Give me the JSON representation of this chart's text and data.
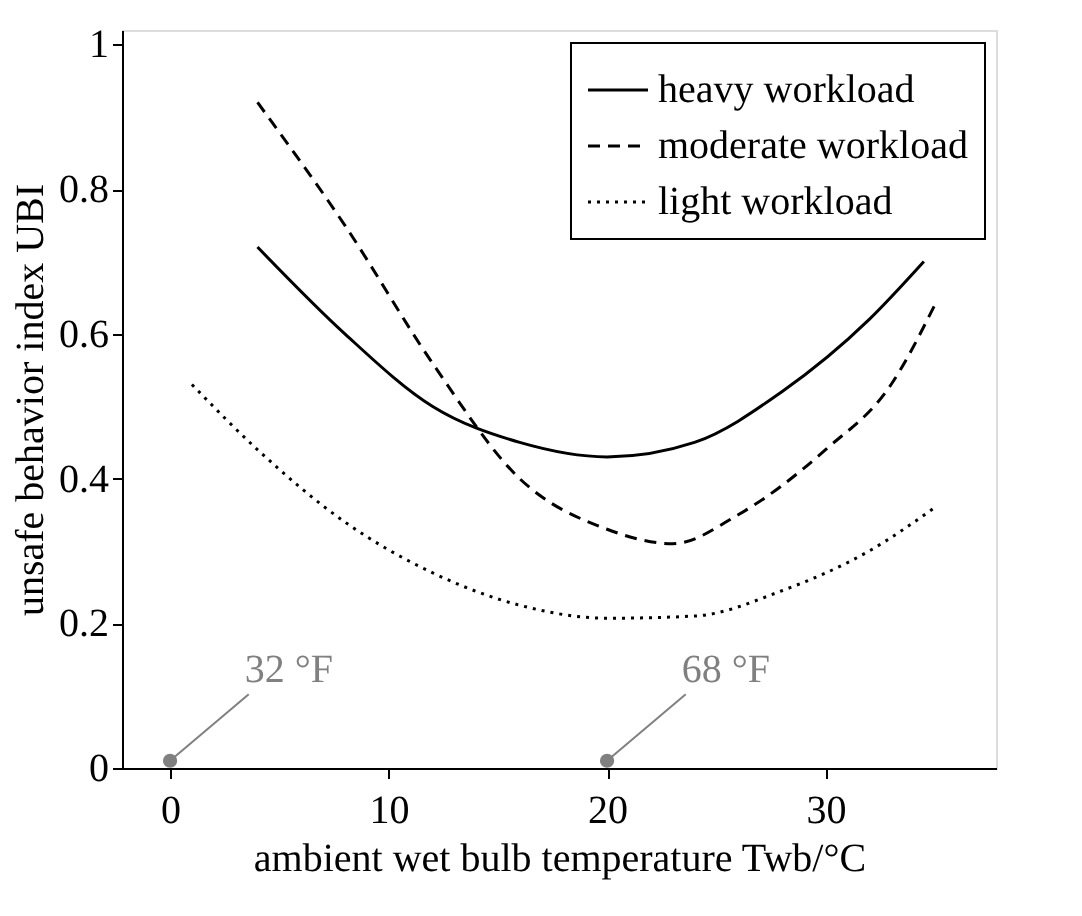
{
  "chart_data": {
    "type": "line",
    "xlabel": "ambient wet bulb temperature Twb/°C",
    "ylabel": "unsafe behavior index UBI",
    "xlim": [
      -2.2,
      37.8
    ],
    "ylim": [
      0,
      1.02
    ],
    "xticks": [
      0,
      10,
      20,
      30
    ],
    "yticks": [
      0,
      0.2,
      0.4,
      0.6,
      0.8,
      1
    ],
    "grid": false,
    "legend": "top right",
    "marker": "none",
    "series": [
      {
        "name": "heavy workload",
        "color": "#000000",
        "line_style": "solid",
        "x": [
          4,
          8,
          12,
          16,
          20,
          24,
          28,
          32,
          34.5
        ],
        "values": [
          0.72,
          0.6,
          0.5,
          0.45,
          0.43,
          0.45,
          0.52,
          0.62,
          0.7
        ]
      },
      {
        "name": "moderate workload",
        "color": "#000000",
        "line_style": "dashed",
        "x": [
          4,
          8,
          12,
          16,
          20,
          23,
          26,
          30,
          33,
          35
        ],
        "values": [
          0.92,
          0.75,
          0.56,
          0.4,
          0.33,
          0.31,
          0.35,
          0.44,
          0.53,
          0.64
        ]
      },
      {
        "name": "light workload",
        "color": "#000000",
        "line_style": "dotted",
        "x": [
          1,
          4,
          8,
          12,
          16,
          20,
          24,
          28,
          32,
          35
        ],
        "values": [
          0.53,
          0.44,
          0.34,
          0.27,
          0.225,
          0.207,
          0.21,
          0.245,
          0.3,
          0.36
        ]
      }
    ],
    "annotations": [
      {
        "text": "32 °F",
        "x": 0,
        "y": 0.01
      },
      {
        "text": "68 °F",
        "x": 20,
        "y": 0.01
      }
    ]
  }
}
